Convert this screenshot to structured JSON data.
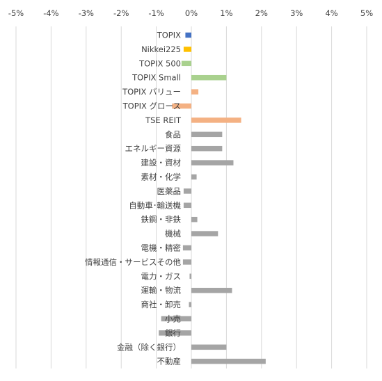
{
  "chart_data": {
    "type": "bar",
    "orientation": "horizontal",
    "xlim": [
      -5,
      5
    ],
    "x_ticks": [
      -5,
      -4,
      -3,
      -2,
      -1,
      0,
      1,
      2,
      3,
      4,
      5
    ],
    "x_tick_labels": [
      "-5%",
      "-4%",
      "-3%",
      "-2%",
      "-1%",
      "0%",
      "1%",
      "2%",
      "3%",
      "4%",
      "5%"
    ],
    "x_axis_position": "top",
    "grid": "vertical",
    "title": "",
    "xlabel": "",
    "ylabel": "",
    "categories": [
      "TOPIX",
      "Nikkei225",
      "TOPIX 500",
      "TOPIX Small",
      "TOPIX バリュー",
      "TOPIX グロース",
      "TSE REIT",
      "食品",
      "エネルギー資源",
      "建設・資材",
      "素材・化学",
      "医薬品",
      "自動車･輸送機",
      "鉄鋼・非鉄",
      "機械",
      "電機・精密",
      "情報通信・サービスその他",
      "電力・ガス",
      "運輸・物流",
      "商社・卸売",
      "小売",
      "銀行",
      "金融（除く銀行）",
      "不動産"
    ],
    "values": [
      -0.17,
      -0.22,
      -0.28,
      1.0,
      0.2,
      -0.55,
      1.42,
      0.88,
      0.88,
      1.2,
      0.15,
      -0.22,
      -0.22,
      0.17,
      0.76,
      -0.24,
      -0.24,
      -0.05,
      1.16,
      -0.07,
      -0.86,
      -0.93,
      1.0,
      2.12
    ],
    "colors": [
      "#4472c4",
      "#ffc000",
      "#a9d18e",
      "#a9d18e",
      "#f4b183",
      "#f4b183",
      "#f4b183",
      "#a5a5a5",
      "#a5a5a5",
      "#a5a5a5",
      "#a5a5a5",
      "#a5a5a5",
      "#a5a5a5",
      "#a5a5a5",
      "#a5a5a5",
      "#a5a5a5",
      "#a5a5a5",
      "#a5a5a5",
      "#a5a5a5",
      "#a5a5a5",
      "#a5a5a5",
      "#a5a5a5",
      "#a5a5a5",
      "#a5a5a5"
    ]
  }
}
